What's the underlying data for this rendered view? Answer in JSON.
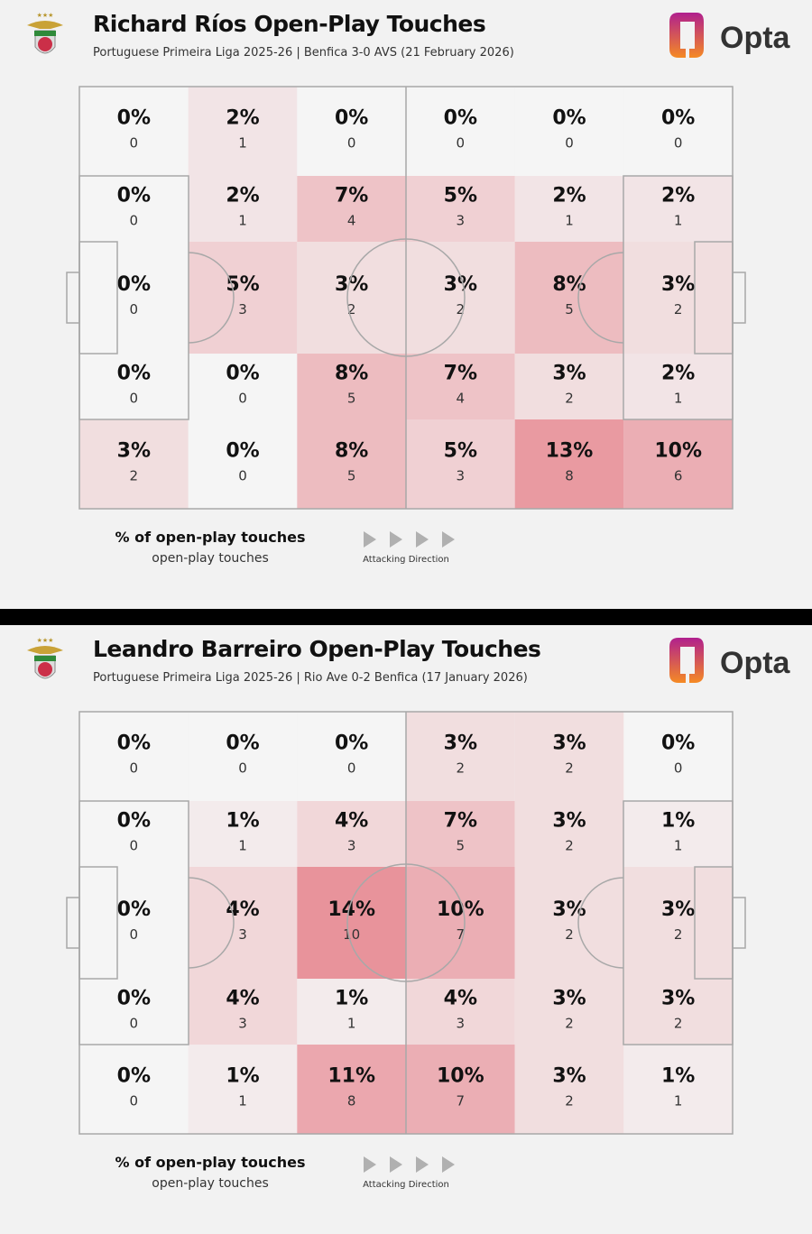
{
  "colors": {
    "low": "#f4f2f2",
    "high": "#e8939b",
    "line": "#a8a8a8",
    "dot": "#d472c8",
    "opta_top": "#b0208e",
    "opta_bottom": "#f58a24"
  },
  "logo_text": "Opta",
  "legend": {
    "primary": "% of open-play touches",
    "secondary": "open-play touches",
    "direction": "Attacking Direction"
  },
  "chart_data": [
    {
      "type": "heatmap",
      "title": "Richard Ríos Open-Play Touches",
      "subtitle": "Portuguese Primeira Liga 2025-26 | Benfica 3-0 AVS (21 February 2026)",
      "rows": [
        [
          {
            "pct": "0%",
            "count": 0
          },
          {
            "pct": "2%",
            "count": 1
          },
          {
            "pct": "0%",
            "count": 0
          },
          {
            "pct": "0%",
            "count": 0
          },
          {
            "pct": "0%",
            "count": 0
          },
          {
            "pct": "0%",
            "count": 0
          }
        ],
        [
          {
            "pct": "0%",
            "count": 0
          },
          {
            "pct": "2%",
            "count": 1
          },
          {
            "pct": "7%",
            "count": 4
          },
          {
            "pct": "5%",
            "count": 3
          },
          {
            "pct": "2%",
            "count": 1
          },
          {
            "pct": "2%",
            "count": 1
          }
        ],
        [
          {
            "pct": "0%",
            "count": 0
          },
          {
            "pct": "5%",
            "count": 3
          },
          {
            "pct": "3%",
            "count": 2
          },
          {
            "pct": "3%",
            "count": 2
          },
          {
            "pct": "8%",
            "count": 5
          },
          {
            "pct": "3%",
            "count": 2
          }
        ],
        [
          {
            "pct": "0%",
            "count": 0
          },
          {
            "pct": "0%",
            "count": 0
          },
          {
            "pct": "8%",
            "count": 5
          },
          {
            "pct": "7%",
            "count": 4
          },
          {
            "pct": "3%",
            "count": 2
          },
          {
            "pct": "2%",
            "count": 1
          }
        ],
        [
          {
            "pct": "3%",
            "count": 2
          },
          {
            "pct": "0%",
            "count": 0
          },
          {
            "pct": "8%",
            "count": 5
          },
          {
            "pct": "5%",
            "count": 3
          },
          {
            "pct": "13%",
            "count": 8
          },
          {
            "pct": "10%",
            "count": 6
          }
        ]
      ]
    },
    {
      "type": "heatmap",
      "title": "Leandro Barreiro Open-Play Touches",
      "subtitle": "Portuguese Primeira Liga 2025-26 | Rio Ave 0-2 Benfica (17 January 2026)",
      "rows": [
        [
          {
            "pct": "0%",
            "count": 0
          },
          {
            "pct": "0%",
            "count": 0
          },
          {
            "pct": "0%",
            "count": 0
          },
          {
            "pct": "3%",
            "count": 2
          },
          {
            "pct": "3%",
            "count": 2
          },
          {
            "pct": "0%",
            "count": 0
          }
        ],
        [
          {
            "pct": "0%",
            "count": 0
          },
          {
            "pct": "1%",
            "count": 1
          },
          {
            "pct": "4%",
            "count": 3
          },
          {
            "pct": "7%",
            "count": 5
          },
          {
            "pct": "3%",
            "count": 2
          },
          {
            "pct": "1%",
            "count": 1
          }
        ],
        [
          {
            "pct": "0%",
            "count": 0
          },
          {
            "pct": "4%",
            "count": 3
          },
          {
            "pct": "14%",
            "count": 10
          },
          {
            "pct": "10%",
            "count": 7
          },
          {
            "pct": "3%",
            "count": 2
          },
          {
            "pct": "3%",
            "count": 2
          }
        ],
        [
          {
            "pct": "0%",
            "count": 0
          },
          {
            "pct": "4%",
            "count": 3
          },
          {
            "pct": "1%",
            "count": 1
          },
          {
            "pct": "4%",
            "count": 3
          },
          {
            "pct": "3%",
            "count": 2
          },
          {
            "pct": "3%",
            "count": 2
          }
        ],
        [
          {
            "pct": "0%",
            "count": 0
          },
          {
            "pct": "1%",
            "count": 1
          },
          {
            "pct": "11%",
            "count": 8
          },
          {
            "pct": "10%",
            "count": 7
          },
          {
            "pct": "3%",
            "count": 2
          },
          {
            "pct": "1%",
            "count": 1
          }
        ]
      ]
    }
  ]
}
